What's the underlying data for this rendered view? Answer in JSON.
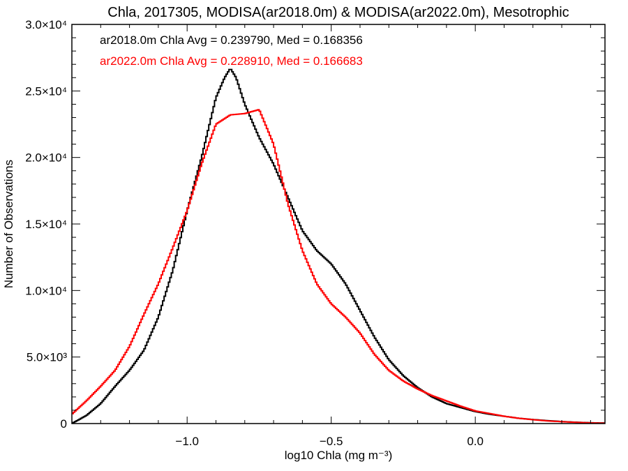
{
  "chart_data": {
    "type": "line",
    "title": "Chla, 2017305, MODISA(ar2018.0m) & MODISA(ar2022.0m), Mesotrophic",
    "xlabel": "log10 Chla (mg m⁻³)",
    "ylabel": "Number of Observations",
    "xlim": [
      -1.4,
      0.45
    ],
    "ylim": [
      0,
      30000
    ],
    "x_ticks": [
      {
        "value": -1.0,
        "label": "−1.0"
      },
      {
        "value": -0.5,
        "label": "−0.5"
      },
      {
        "value": 0.0,
        "label": "0.0"
      }
    ],
    "y_ticks": [
      {
        "value": 0,
        "label": "0"
      },
      {
        "value": 5000,
        "label": "5.0×10³"
      },
      {
        "value": 10000,
        "label": "1.0×10⁴"
      },
      {
        "value": 15000,
        "label": "1.5×10⁴"
      },
      {
        "value": 20000,
        "label": "2.0×10⁴"
      },
      {
        "value": 25000,
        "label": "2.5×10⁴"
      },
      {
        "value": 30000,
        "label": "3.0×10⁴"
      }
    ],
    "annotations": [
      {
        "text": "ar2018.0m Chla Avg = 0.239790, Med = 0.168356",
        "color": "#000000"
      },
      {
        "text": "ar2022.0m Chla Avg = 0.228910, Med = 0.166683",
        "color": "#ff0000"
      }
    ],
    "series": [
      {
        "color": "#000000",
        "x": [
          -1.4,
          -1.35,
          -1.3,
          -1.25,
          -1.2,
          -1.15,
          -1.1,
          -1.05,
          -1.0,
          -0.95,
          -0.9,
          -0.87,
          -0.85,
          -0.83,
          -0.8,
          -0.75,
          -0.7,
          -0.65,
          -0.6,
          -0.55,
          -0.5,
          -0.45,
          -0.4,
          -0.35,
          -0.3,
          -0.25,
          -0.2,
          -0.15,
          -0.1,
          -0.05,
          0.0,
          0.05,
          0.1,
          0.15,
          0.2,
          0.25,
          0.3,
          0.35,
          0.4,
          0.45
        ],
        "y": [
          0,
          600,
          1500,
          2800,
          4000,
          5500,
          8000,
          11500,
          16000,
          20000,
          24500,
          26000,
          26700,
          26000,
          24000,
          21500,
          19500,
          17000,
          14500,
          13000,
          12000,
          10500,
          8500,
          6500,
          4800,
          3600,
          2700,
          2000,
          1500,
          1200,
          900,
          700,
          550,
          400,
          300,
          220,
          150,
          100,
          60,
          40
        ]
      },
      {
        "color": "#ff0000",
        "x": [
          -1.4,
          -1.35,
          -1.3,
          -1.25,
          -1.2,
          -1.15,
          -1.1,
          -1.05,
          -1.0,
          -0.95,
          -0.9,
          -0.85,
          -0.8,
          -0.75,
          -0.7,
          -0.65,
          -0.6,
          -0.55,
          -0.5,
          -0.45,
          -0.4,
          -0.35,
          -0.3,
          -0.25,
          -0.2,
          -0.15,
          -0.1,
          -0.05,
          0.0,
          0.05,
          0.1,
          0.15,
          0.2,
          0.25,
          0.3,
          0.35,
          0.4,
          0.45
        ],
        "y": [
          700,
          1700,
          2800,
          4000,
          5800,
          8200,
          10500,
          13200,
          16000,
          19500,
          22500,
          23200,
          23300,
          23600,
          21000,
          16500,
          13000,
          10500,
          9000,
          8000,
          6800,
          5200,
          4000,
          3200,
          2600,
          2100,
          1700,
          1300,
          950,
          750,
          550,
          400,
          290,
          200,
          140,
          90,
          50,
          30
        ]
      }
    ]
  }
}
